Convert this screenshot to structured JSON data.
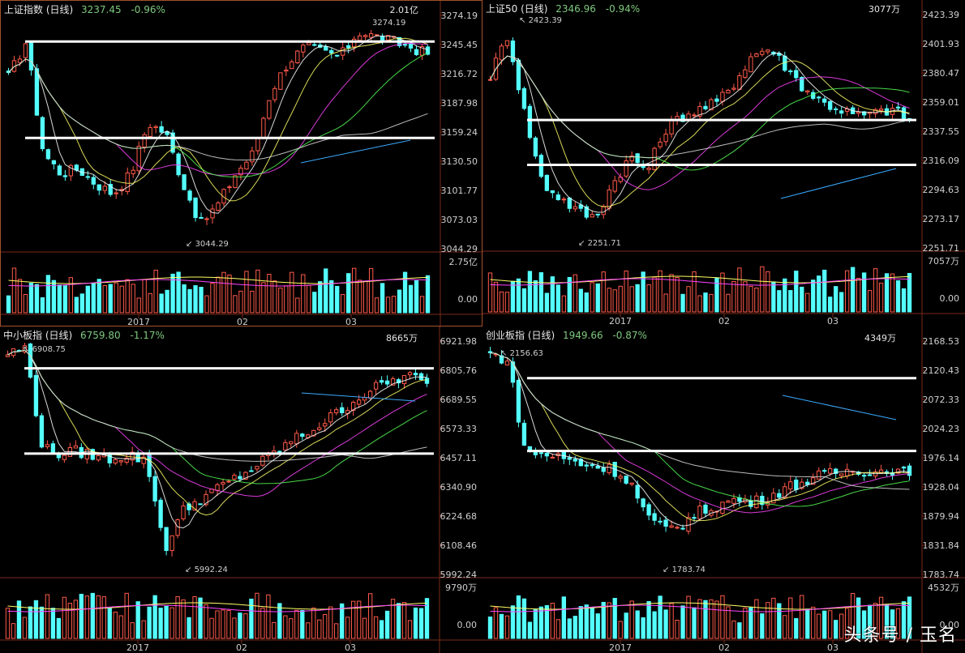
{
  "panels": [
    {
      "name": "上证指数 (日线)",
      "price": "3237.45",
      "change": "-0.96%",
      "volume_top": "2.01亿",
      "y_ticks": [
        "3274.19",
        "3245.45",
        "3216.72",
        "3187.98",
        "3159.24",
        "3130.50",
        "3101.77",
        "3073.03",
        "3044.29"
      ],
      "vol_ticks": [
        "2.75亿",
        "0.00"
      ],
      "x_ticks": [
        "2017",
        "02",
        "03"
      ],
      "high_label": "3274.19",
      "low_label": "3044.29"
    },
    {
      "name": "上证50 (日线)",
      "price": "2346.96",
      "change": "-0.94%",
      "volume_top": "3077万",
      "y_ticks": [
        "2423.39",
        "2401.93",
        "2380.47",
        "2359.01",
        "2337.55",
        "2316.09",
        "2294.63",
        "2273.17",
        "2251.71"
      ],
      "vol_ticks": [
        "7057万",
        "0.00"
      ],
      "x_ticks": [
        "2017",
        "02",
        "03"
      ],
      "high_label": "2423.39",
      "low_label": "2251.71"
    },
    {
      "name": "中小板指 (日线)",
      "price": "6759.80",
      "change": "-1.17%",
      "volume_top": "8665万",
      "y_ticks": [
        "6921.98",
        "6805.76",
        "6689.55",
        "6573.33",
        "6457.11",
        "6340.90",
        "6224.68",
        "6108.46",
        "5992.24"
      ],
      "vol_ticks": [
        "9790万",
        "0.00"
      ],
      "x_ticks": [
        "2017",
        "02",
        "03"
      ],
      "high_label": "6908.75",
      "low_label": "5992.24"
    },
    {
      "name": "创业板指 (日线)",
      "price": "1949.66",
      "change": "-0.87%",
      "volume_top": "4349万",
      "y_ticks": [
        "2168.53",
        "2120.43",
        "2072.33",
        "2024.23",
        "1976.14",
        "1928.04",
        "1879.94",
        "1831.84",
        "1783.74"
      ],
      "vol_ticks": [
        "4532万",
        "0.00"
      ],
      "x_ticks": [
        "2017",
        "02",
        "03"
      ],
      "high_label": "2156.63",
      "low_label": "1783.74"
    }
  ],
  "watermark": "头条号 / 玉名",
  "colors": {
    "up": "#ff5a4a",
    "down": "#54ffff",
    "ma5": "#ffffff",
    "ma10": "#ffff66",
    "ma20": "#ff44ff",
    "ma30": "#55ff55",
    "ma60": "#dddddd",
    "support": "#ffffff",
    "trend": "#3aaaff",
    "down_text": "#7ec97e"
  },
  "chart_data": [
    {
      "type": "candlestick",
      "title": "上证指数 (日线)",
      "categories": [
        "2017",
        "02",
        "03"
      ],
      "ylim": [
        3044.29,
        3274.19
      ],
      "close_path": [
        3215,
        3250,
        3140,
        3120,
        3125,
        3110,
        3100,
        3120,
        3170,
        3160,
        3110,
        3070,
        3090,
        3120,
        3140,
        3200,
        3230,
        3245,
        3240,
        3235,
        3260,
        3255,
        3250,
        3245,
        3237.45
      ],
      "support_levels": [
        3250,
        3155
      ]
    },
    {
      "type": "candlestick",
      "title": "上证50 (日线)",
      "categories": [
        "2017",
        "02",
        "03"
      ],
      "ylim": [
        2251.71,
        2423.39
      ],
      "close_path": [
        2380,
        2410,
        2350,
        2300,
        2290,
        2280,
        2275,
        2300,
        2320,
        2310,
        2340,
        2350,
        2355,
        2360,
        2375,
        2395,
        2400,
        2385,
        2370,
        2360,
        2355,
        2350,
        2352,
        2355,
        2346.96
      ],
      "support_levels": [
        2347,
        2314
      ]
    },
    {
      "type": "candlestick",
      "title": "中小板指 (日线)",
      "categories": [
        "2017",
        "02",
        "03"
      ],
      "ylim": [
        5992.24,
        6921.98
      ],
      "close_path": [
        6880,
        6900,
        6500,
        6480,
        6490,
        6470,
        6460,
        6480,
        6440,
        6100,
        6250,
        6300,
        6340,
        6380,
        6420,
        6470,
        6520,
        6560,
        6600,
        6650,
        6700,
        6740,
        6770,
        6790,
        6759.8
      ],
      "support_levels": [
        6820,
        6480
      ]
    },
    {
      "type": "candlestick",
      "title": "创业板指 (日线)",
      "categories": [
        "2017",
        "02",
        "03"
      ],
      "ylim": [
        1783.74,
        2168.53
      ],
      "close_path": [
        2150,
        2140,
        1990,
        1985,
        1980,
        1970,
        1965,
        1960,
        1940,
        1880,
        1860,
        1870,
        1890,
        1900,
        1910,
        1905,
        1915,
        1930,
        1940,
        1950,
        1955,
        1960,
        1955,
        1960,
        1949.66
      ],
      "support_levels": [
        2110,
        1990
      ]
    }
  ]
}
